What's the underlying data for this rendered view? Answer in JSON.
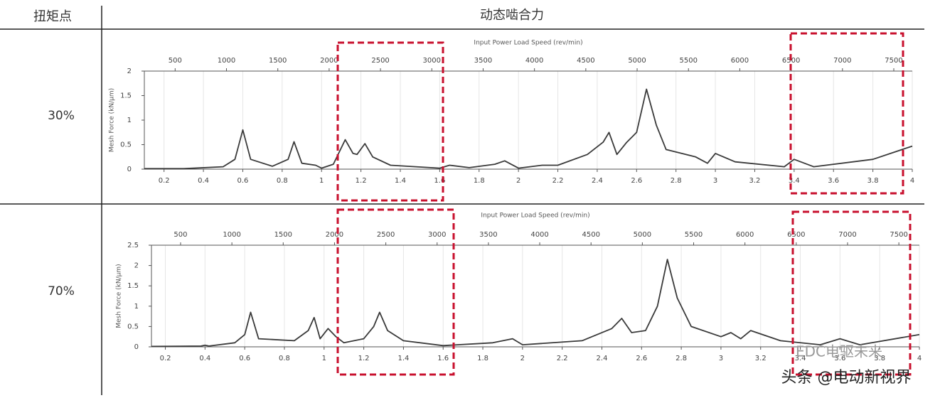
{
  "header": {
    "col1": "扭矩点",
    "col2": "动态啮合力"
  },
  "rows": [
    "30%",
    "70%"
  ],
  "watermark": {
    "logo": "EDC电驱未来",
    "credit": "头条 @电动新视界"
  },
  "chart_data": [
    {
      "type": "line",
      "x2label": "Input Power Load Speed (rev/min)",
      "ylabel": "Mesh Force (kN/μm)",
      "color": "#3a3a3a",
      "grid": true,
      "xlim": [
        0.1,
        4
      ],
      "xticks": [
        0.2,
        0.4,
        0.6,
        0.8,
        1,
        1.2,
        1.4,
        1.6,
        1.8,
        2,
        2.2,
        2.4,
        2.6,
        2.8,
        3,
        3.2,
        3.4,
        3.6,
        3.8,
        4
      ],
      "x2lim": [
        200,
        7680
      ],
      "x2ticks": [
        500,
        1000,
        1500,
        2000,
        2500,
        3000,
        3500,
        4000,
        4500,
        5000,
        5500,
        6000,
        6500,
        7000,
        7500
      ],
      "ylim": [
        0,
        2
      ],
      "yticks": [
        0,
        0.5,
        1,
        1.5,
        2
      ],
      "x": [
        0.1,
        0.3,
        0.5,
        0.56,
        0.6,
        0.64,
        0.75,
        0.83,
        0.86,
        0.9,
        0.97,
        1.0,
        1.06,
        1.12,
        1.16,
        1.18,
        1.22,
        1.26,
        1.35,
        1.6,
        1.65,
        1.75,
        1.88,
        1.93,
        2.0,
        2.12,
        2.2,
        2.35,
        2.43,
        2.46,
        2.5,
        2.55,
        2.6,
        2.65,
        2.7,
        2.75,
        2.9,
        2.96,
        3.0,
        3.1,
        3.35,
        3.4,
        3.5,
        3.8,
        4.0
      ],
      "values": [
        0.01,
        0.01,
        0.05,
        0.2,
        0.8,
        0.2,
        0.06,
        0.2,
        0.56,
        0.12,
        0.08,
        0.02,
        0.1,
        0.6,
        0.32,
        0.3,
        0.52,
        0.25,
        0.08,
        0.02,
        0.08,
        0.03,
        0.1,
        0.17,
        0.02,
        0.08,
        0.08,
        0.3,
        0.55,
        0.75,
        0.3,
        0.55,
        0.75,
        1.63,
        0.9,
        0.4,
        0.25,
        0.12,
        0.32,
        0.15,
        0.05,
        0.2,
        0.05,
        0.2,
        0.47
      ]
    },
    {
      "type": "line",
      "x2label": "Input Power Load Speed (rev/min)",
      "ylabel": "Mesh Force (kN/μm)",
      "color": "#3a3a3a",
      "grid": true,
      "xlim": [
        0.13,
        4
      ],
      "xticks": [
        0.2,
        0.4,
        0.6,
        0.8,
        1,
        1.2,
        1.4,
        1.6,
        1.8,
        2,
        2.2,
        2.4,
        2.6,
        2.8,
        3,
        3.2,
        3.4,
        3.6,
        3.8,
        4
      ],
      "x2lim": [
        216,
        7700
      ],
      "x2ticks": [
        500,
        1000,
        1500,
        2000,
        2500,
        3000,
        3500,
        4000,
        4500,
        5000,
        5500,
        6000,
        6500,
        7000,
        7500
      ],
      "ylim": [
        0,
        2.5
      ],
      "yticks": [
        0,
        0.5,
        1,
        1.5,
        2,
        2.5
      ],
      "x": [
        0.13,
        0.38,
        0.4,
        0.42,
        0.55,
        0.6,
        0.63,
        0.67,
        0.85,
        0.92,
        0.95,
        0.98,
        1.02,
        1.06,
        1.1,
        1.2,
        1.25,
        1.28,
        1.32,
        1.4,
        1.6,
        1.85,
        1.95,
        2.0,
        2.3,
        2.45,
        2.5,
        2.55,
        2.62,
        2.68,
        2.73,
        2.78,
        2.85,
        3.0,
        3.05,
        3.1,
        3.15,
        3.3,
        3.5,
        3.6,
        3.7,
        4.0
      ],
      "values": [
        0.01,
        0.02,
        0.04,
        0.02,
        0.1,
        0.3,
        0.85,
        0.2,
        0.15,
        0.4,
        0.72,
        0.2,
        0.45,
        0.25,
        0.1,
        0.2,
        0.5,
        0.85,
        0.4,
        0.15,
        0.03,
        0.1,
        0.2,
        0.05,
        0.15,
        0.45,
        0.7,
        0.35,
        0.4,
        1.0,
        2.15,
        1.2,
        0.5,
        0.25,
        0.35,
        0.2,
        0.4,
        0.15,
        0.05,
        0.2,
        0.05,
        0.3
      ]
    }
  ]
}
